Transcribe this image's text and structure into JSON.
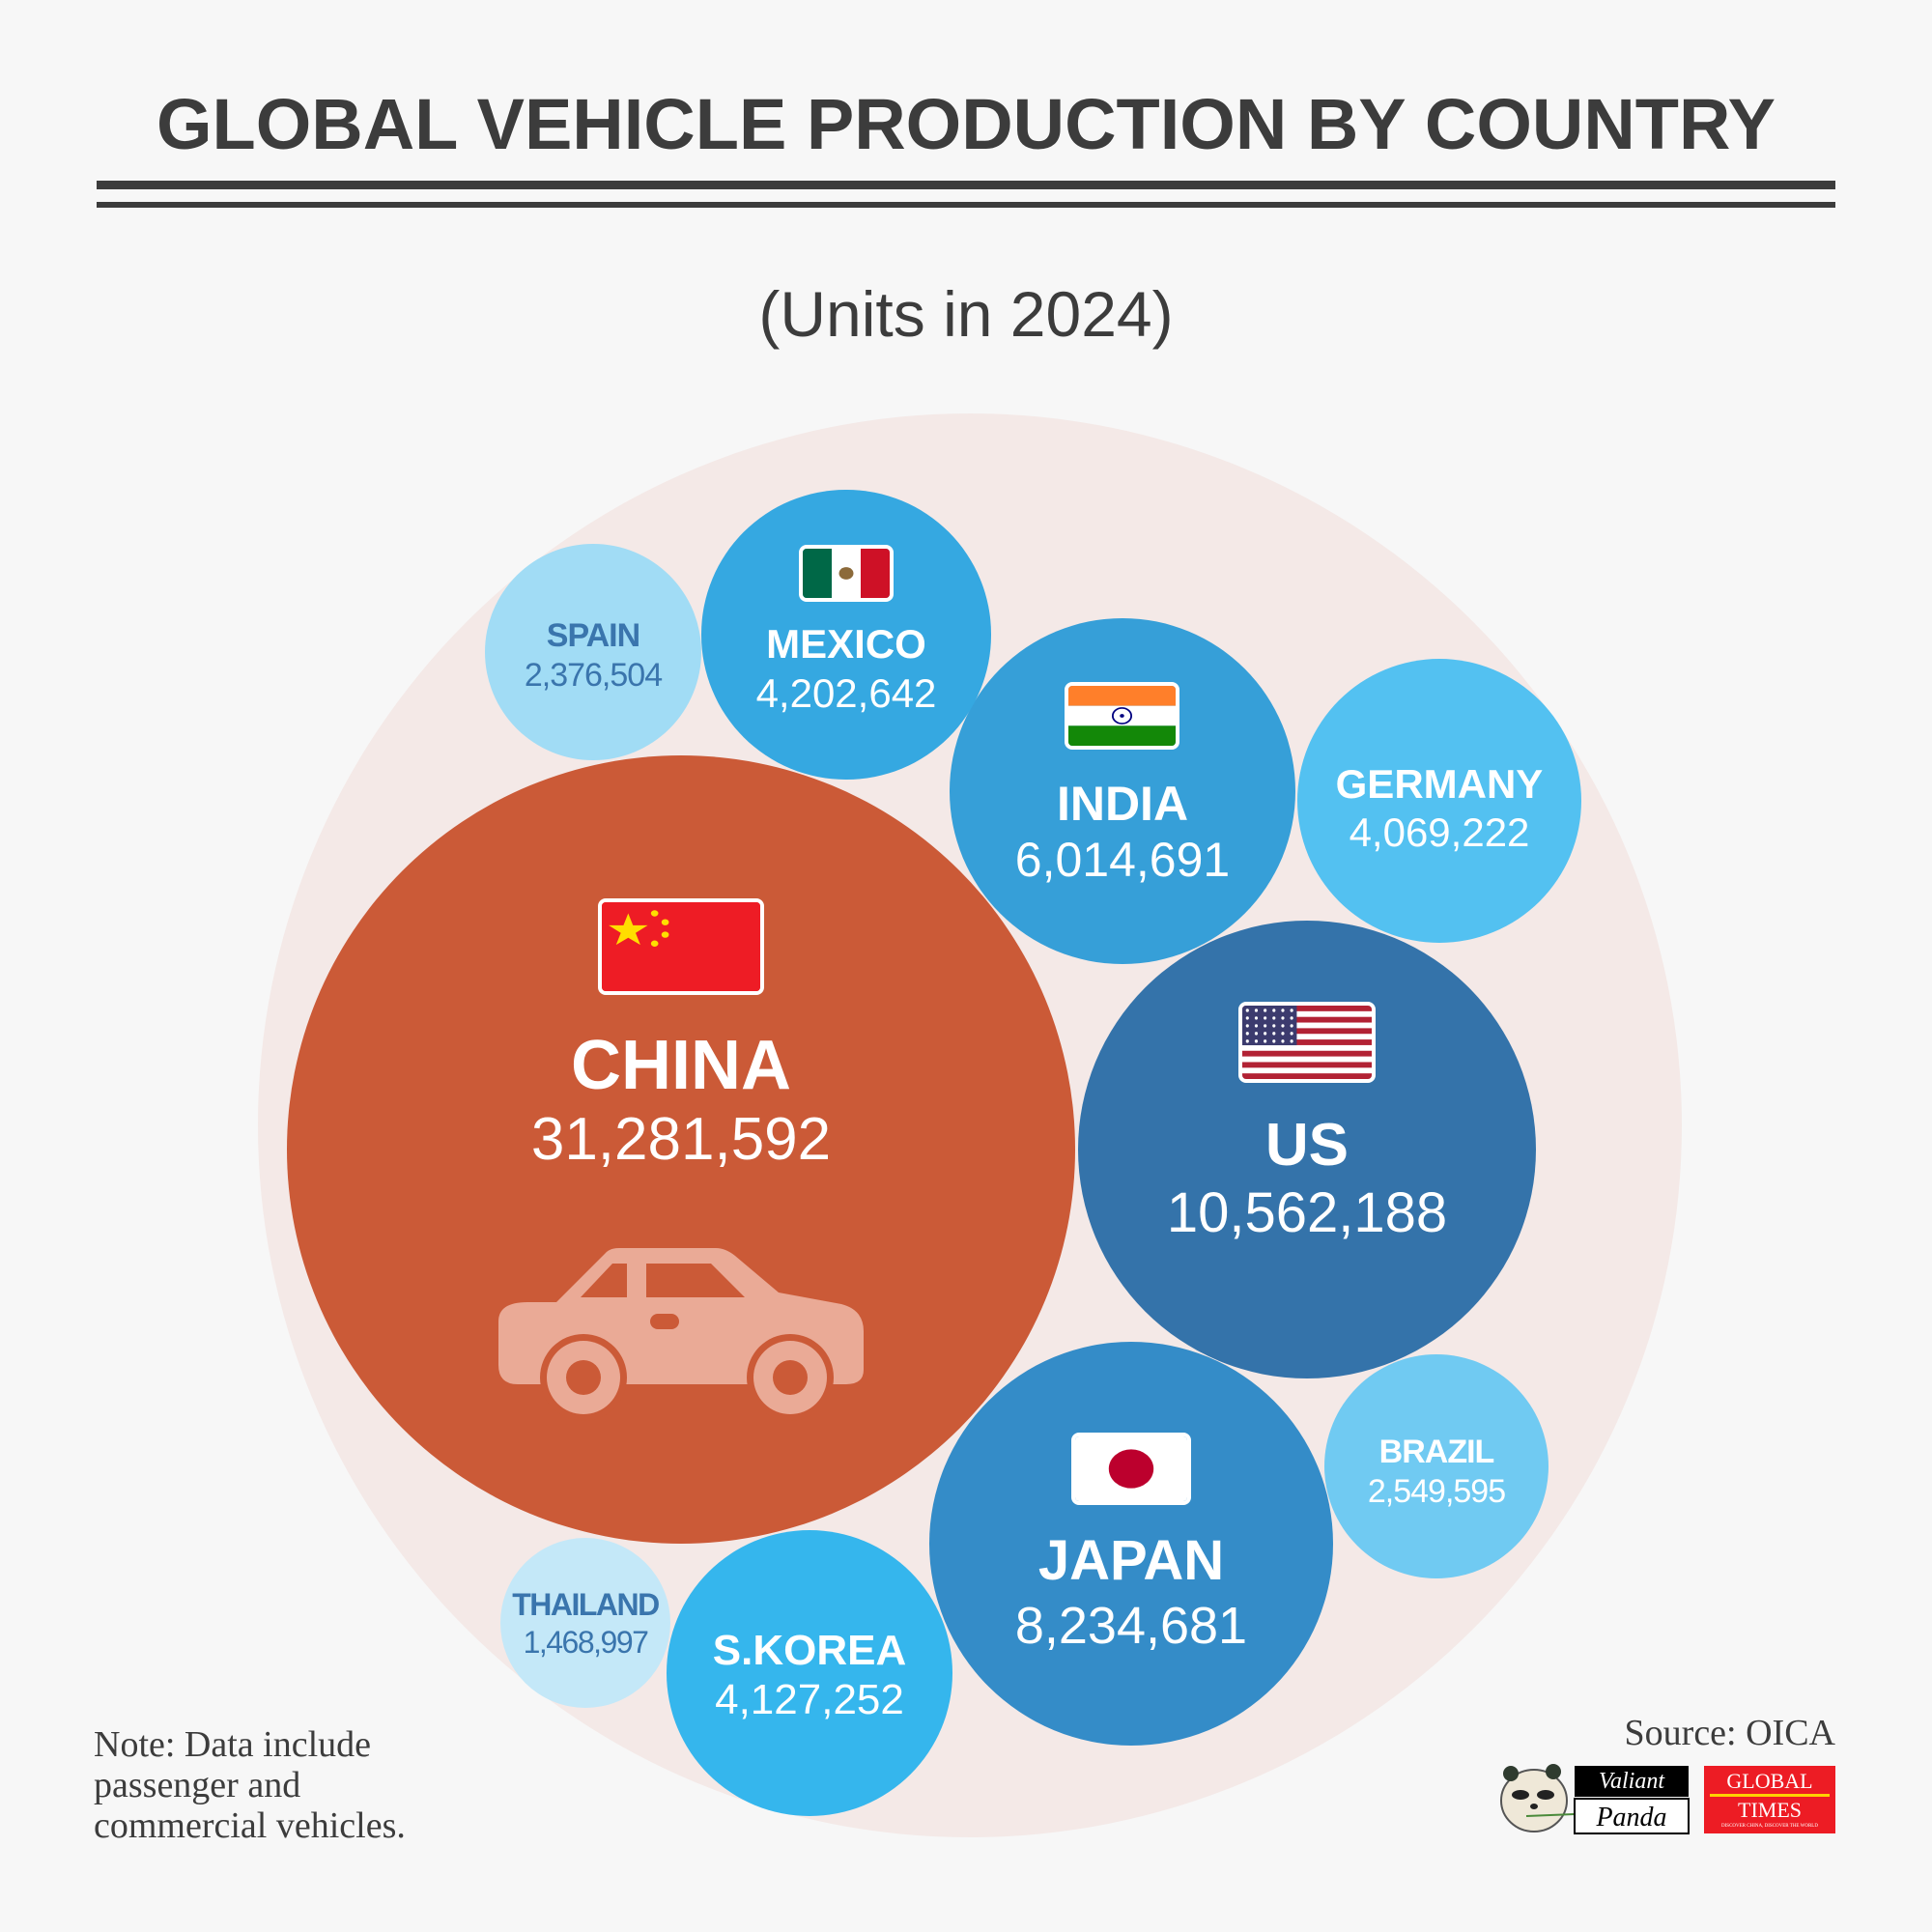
{
  "header": {
    "title": "GLOBAL VEHICLE PRODUCTION BY COUNTRY",
    "subtitle": "(Units in 2024)"
  },
  "chart_data": {
    "type": "bubble",
    "title": "GLOBAL VEHICLE PRODUCTION BY COUNTRY",
    "subtitle": "(Units in 2024)",
    "unit": "Units",
    "categories": [
      "CHINA",
      "US",
      "JAPAN",
      "INDIA",
      "MEXICO",
      "S.KOREA",
      "GERMANY",
      "BRAZIL",
      "SPAIN",
      "THAILAND"
    ],
    "values": [
      31281592,
      10562188,
      8234681,
      6014691,
      4202642,
      4127252,
      4069222,
      2549595,
      2376504,
      1468997
    ],
    "labels": [
      "31,281,592",
      "10,562,188",
      "8,234,681",
      "6,014,691",
      "4,202,642",
      "4,127,252",
      "4,069,222",
      "2,549,595",
      "2,376,504",
      "1,468,997"
    ],
    "colors": [
      "#cb5a37",
      "#3473aa",
      "#348cc8",
      "#369fd8",
      "#35a8e1",
      "#35b6ed",
      "#53c1f1",
      "#70caf2",
      "#a1dcf5",
      "#c4e8f8"
    ],
    "flags": [
      "china-flag",
      "us-flag",
      "japan-flag",
      "india-flag",
      "mexico-flag",
      null,
      null,
      null,
      null,
      null
    ],
    "container_color": "#f4e9e7"
  },
  "footer": {
    "note_lines": [
      "Note: Data include",
      "passenger and",
      "commercial vehicles."
    ],
    "source": "Source: OICA",
    "logos": {
      "panda": "Valiant Panda",
      "global_times": "GLOBAL TIMES",
      "global_times_tagline": "DISCOVER CHINA, DISCOVER THE WORLD"
    }
  }
}
